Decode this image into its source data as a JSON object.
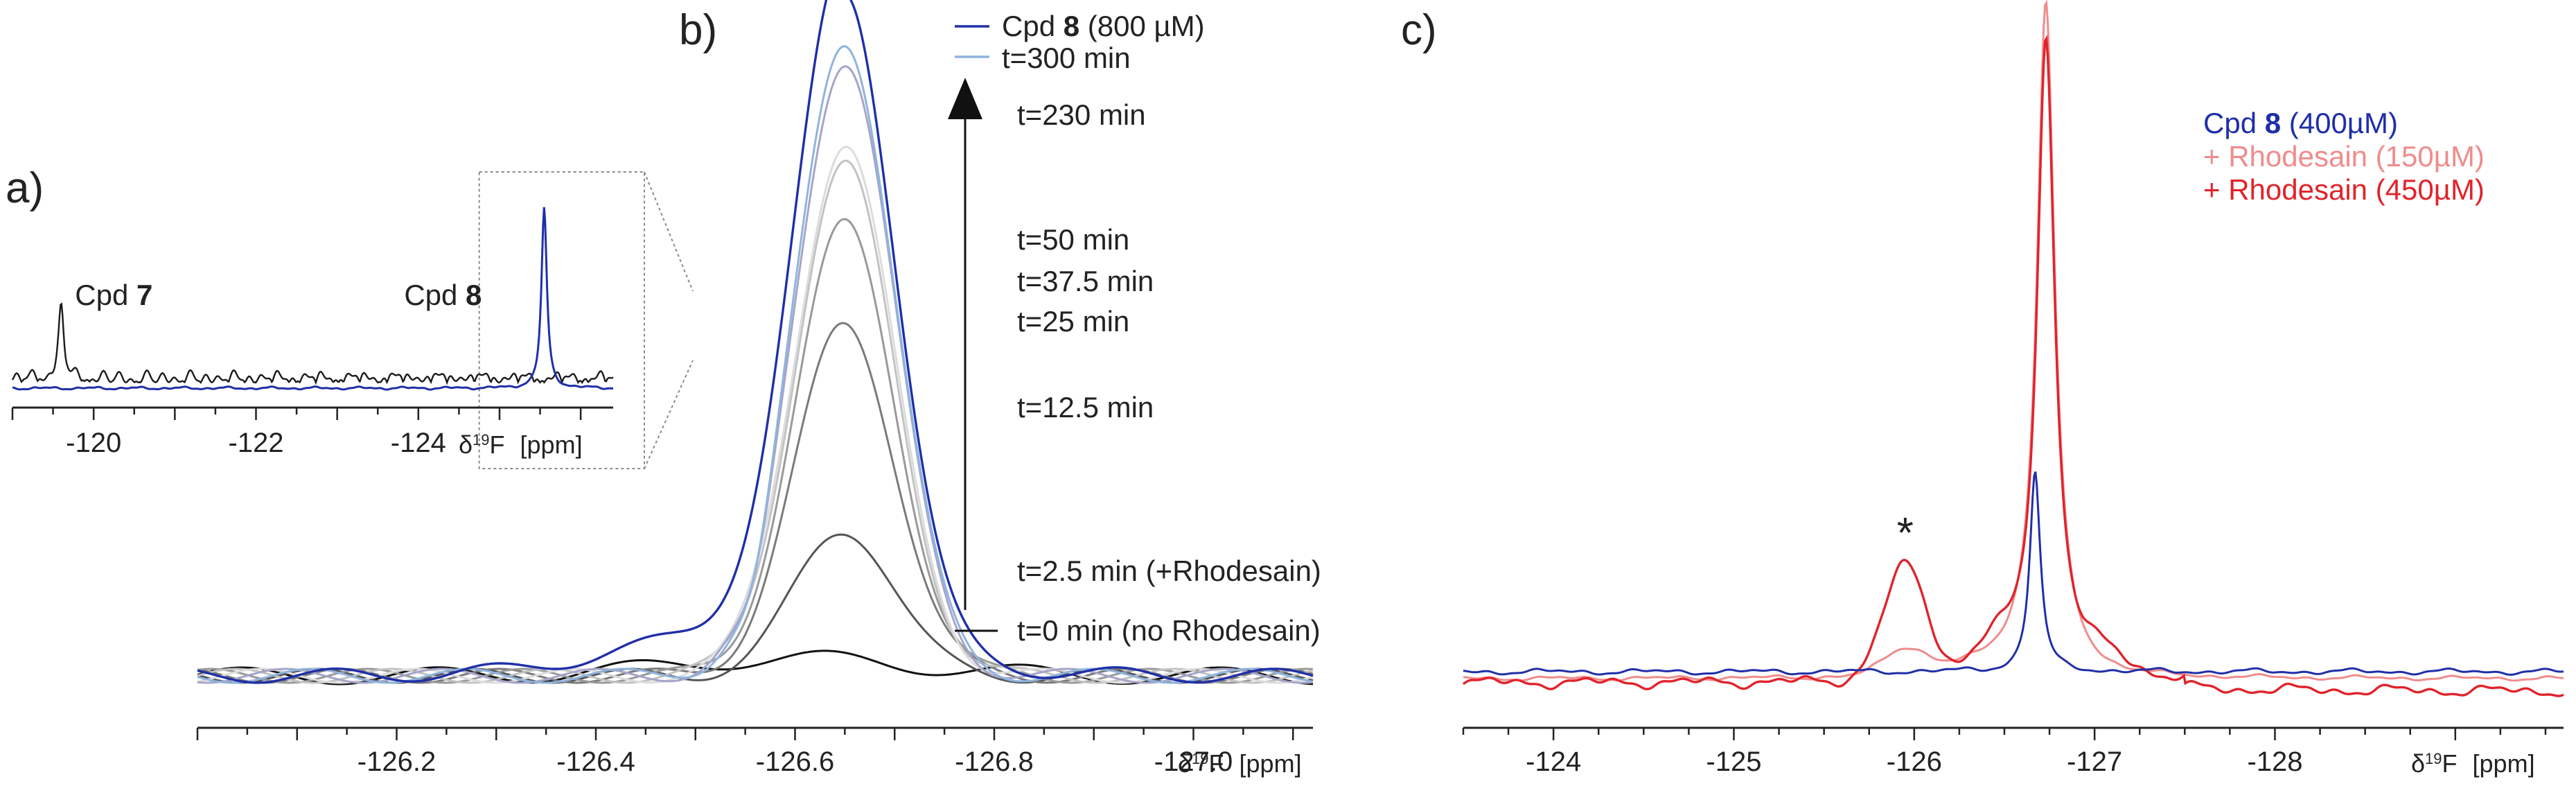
{
  "chart_data": [
    {
      "panel": "a)",
      "type": "line",
      "title": "",
      "xlabel": "δ¹⁹F [ppm]",
      "xlim": [
        -119,
        -126.4
      ],
      "x_ticks": [
        "-120",
        "-122",
        "-124"
      ],
      "x_ticks_values": [
        -120,
        -122,
        -124
      ],
      "axis_label_prefix": "δ",
      "axis_label_sup": "19",
      "axis_label_nucleus": "F",
      "axis_label_unit": "[ppm]",
      "series": [
        {
          "name": "Cpd 7 spectrum",
          "color": "#1a1a1a",
          "peaks": [
            {
              "x": -119.6,
              "height": 0.78,
              "label": "Cpd ",
              "label_bold": "7"
            }
          ],
          "noise_level": 0.22
        },
        {
          "name": "Cpd 8 spectrum",
          "color": "#1f2fa8",
          "peaks": [
            {
              "x": -125.55,
              "height": 1.0,
              "label": "Cpd ",
              "label_bold": "8"
            }
          ],
          "noise_level": 0.04
        }
      ],
      "zoom_box": {
        "x_from": -124.75,
        "x_to": -126.4
      }
    },
    {
      "panel": "b)",
      "type": "line",
      "title": "",
      "xlabel": "δ¹⁹F [ppm]",
      "xlim": [
        -126.0,
        -127.12
      ],
      "x_ticks": [
        "-126.2",
        "-126.4",
        "-126.6",
        "-126.8",
        "-127.0"
      ],
      "x_ticks_values": [
        -126.2,
        -126.4,
        -126.6,
        -126.8,
        -127.0
      ],
      "axis_label_prefix": "δ",
      "axis_label_sup": "19",
      "axis_label_nucleus": "F",
      "axis_label_unit": "[ppm]",
      "peak_center": -126.65,
      "series": [
        {
          "name": "t=0 min (no Rhodesain)",
          "color": "#111111",
          "height": 0.02
        },
        {
          "name": "t=2.5 min (+Rhodesain)",
          "color": "#555555",
          "height": 0.22
        },
        {
          "name": "t=12.5 min",
          "color": "#7a7a7a",
          "height": 0.53
        },
        {
          "name": "t=25 min",
          "color": "#999999",
          "height": 0.68
        },
        {
          "name": "t=37.5 min",
          "color": "#c2c2c2",
          "height": 0.77
        },
        {
          "name": "t=50 min",
          "color": "#dcdcdc",
          "height": 0.8
        },
        {
          "name": "t=230 min",
          "color": "#a5a5c8",
          "height": 0.93
        },
        {
          "name": "t=300 min",
          "color": "#8fb4de",
          "height": 0.96
        },
        {
          "name": "Cpd ",
          "name_bold": "8",
          "name_suffix": " (800 µM)",
          "color": "#1f2fa8",
          "height": 1.0
        }
      ],
      "legend": [
        {
          "text": "Cpd ",
          "bold": "8",
          "suffix": " (800 µM)",
          "color": "#1f2fa8"
        },
        {
          "text": "t=300 min",
          "color": "#8fb4de"
        }
      ],
      "annotations": [
        "t=230 min",
        "t=50 min",
        "t=37.5 min",
        "t=25 min",
        "t=12.5 min",
        "t=2.5 min (+Rhodesain)",
        "t=0 min (no Rhodesain)"
      ]
    },
    {
      "panel": "c)",
      "type": "line",
      "title": "",
      "xlabel": "δ¹⁹F [ppm]",
      "xlim": [
        -123.5,
        -129.6
      ],
      "x_ticks": [
        "-124",
        "-125",
        "-126",
        "-127",
        "-128"
      ],
      "x_ticks_values": [
        -124,
        -125,
        -126,
        -127,
        -128
      ],
      "axis_label_prefix": "δ",
      "axis_label_sup": "19",
      "axis_label_nucleus": "F",
      "axis_label_unit": "[ppm]",
      "series": [
        {
          "name": "Cpd ",
          "name_bold": "8",
          "name_suffix": " (400µM)",
          "color": "#1f2fa8",
          "main_peak": {
            "x": -126.67,
            "height": 0.3
          },
          "side_peak": null
        },
        {
          "name": "+ Rhodesain (150µM)",
          "color": "#f08c8c",
          "main_peak": {
            "x": -126.73,
            "height": 1.0
          },
          "side_peak": {
            "x": -125.95,
            "height": 0.04
          }
        },
        {
          "name": "+ Rhodesain (450µM)",
          "color": "#e0232b",
          "main_peak": {
            "x": -126.73,
            "height": 0.96
          },
          "side_peak": {
            "x": -125.95,
            "height": 0.17
          }
        }
      ],
      "annotations": [
        {
          "text": "*",
          "x": -125.95
        }
      ]
    }
  ]
}
